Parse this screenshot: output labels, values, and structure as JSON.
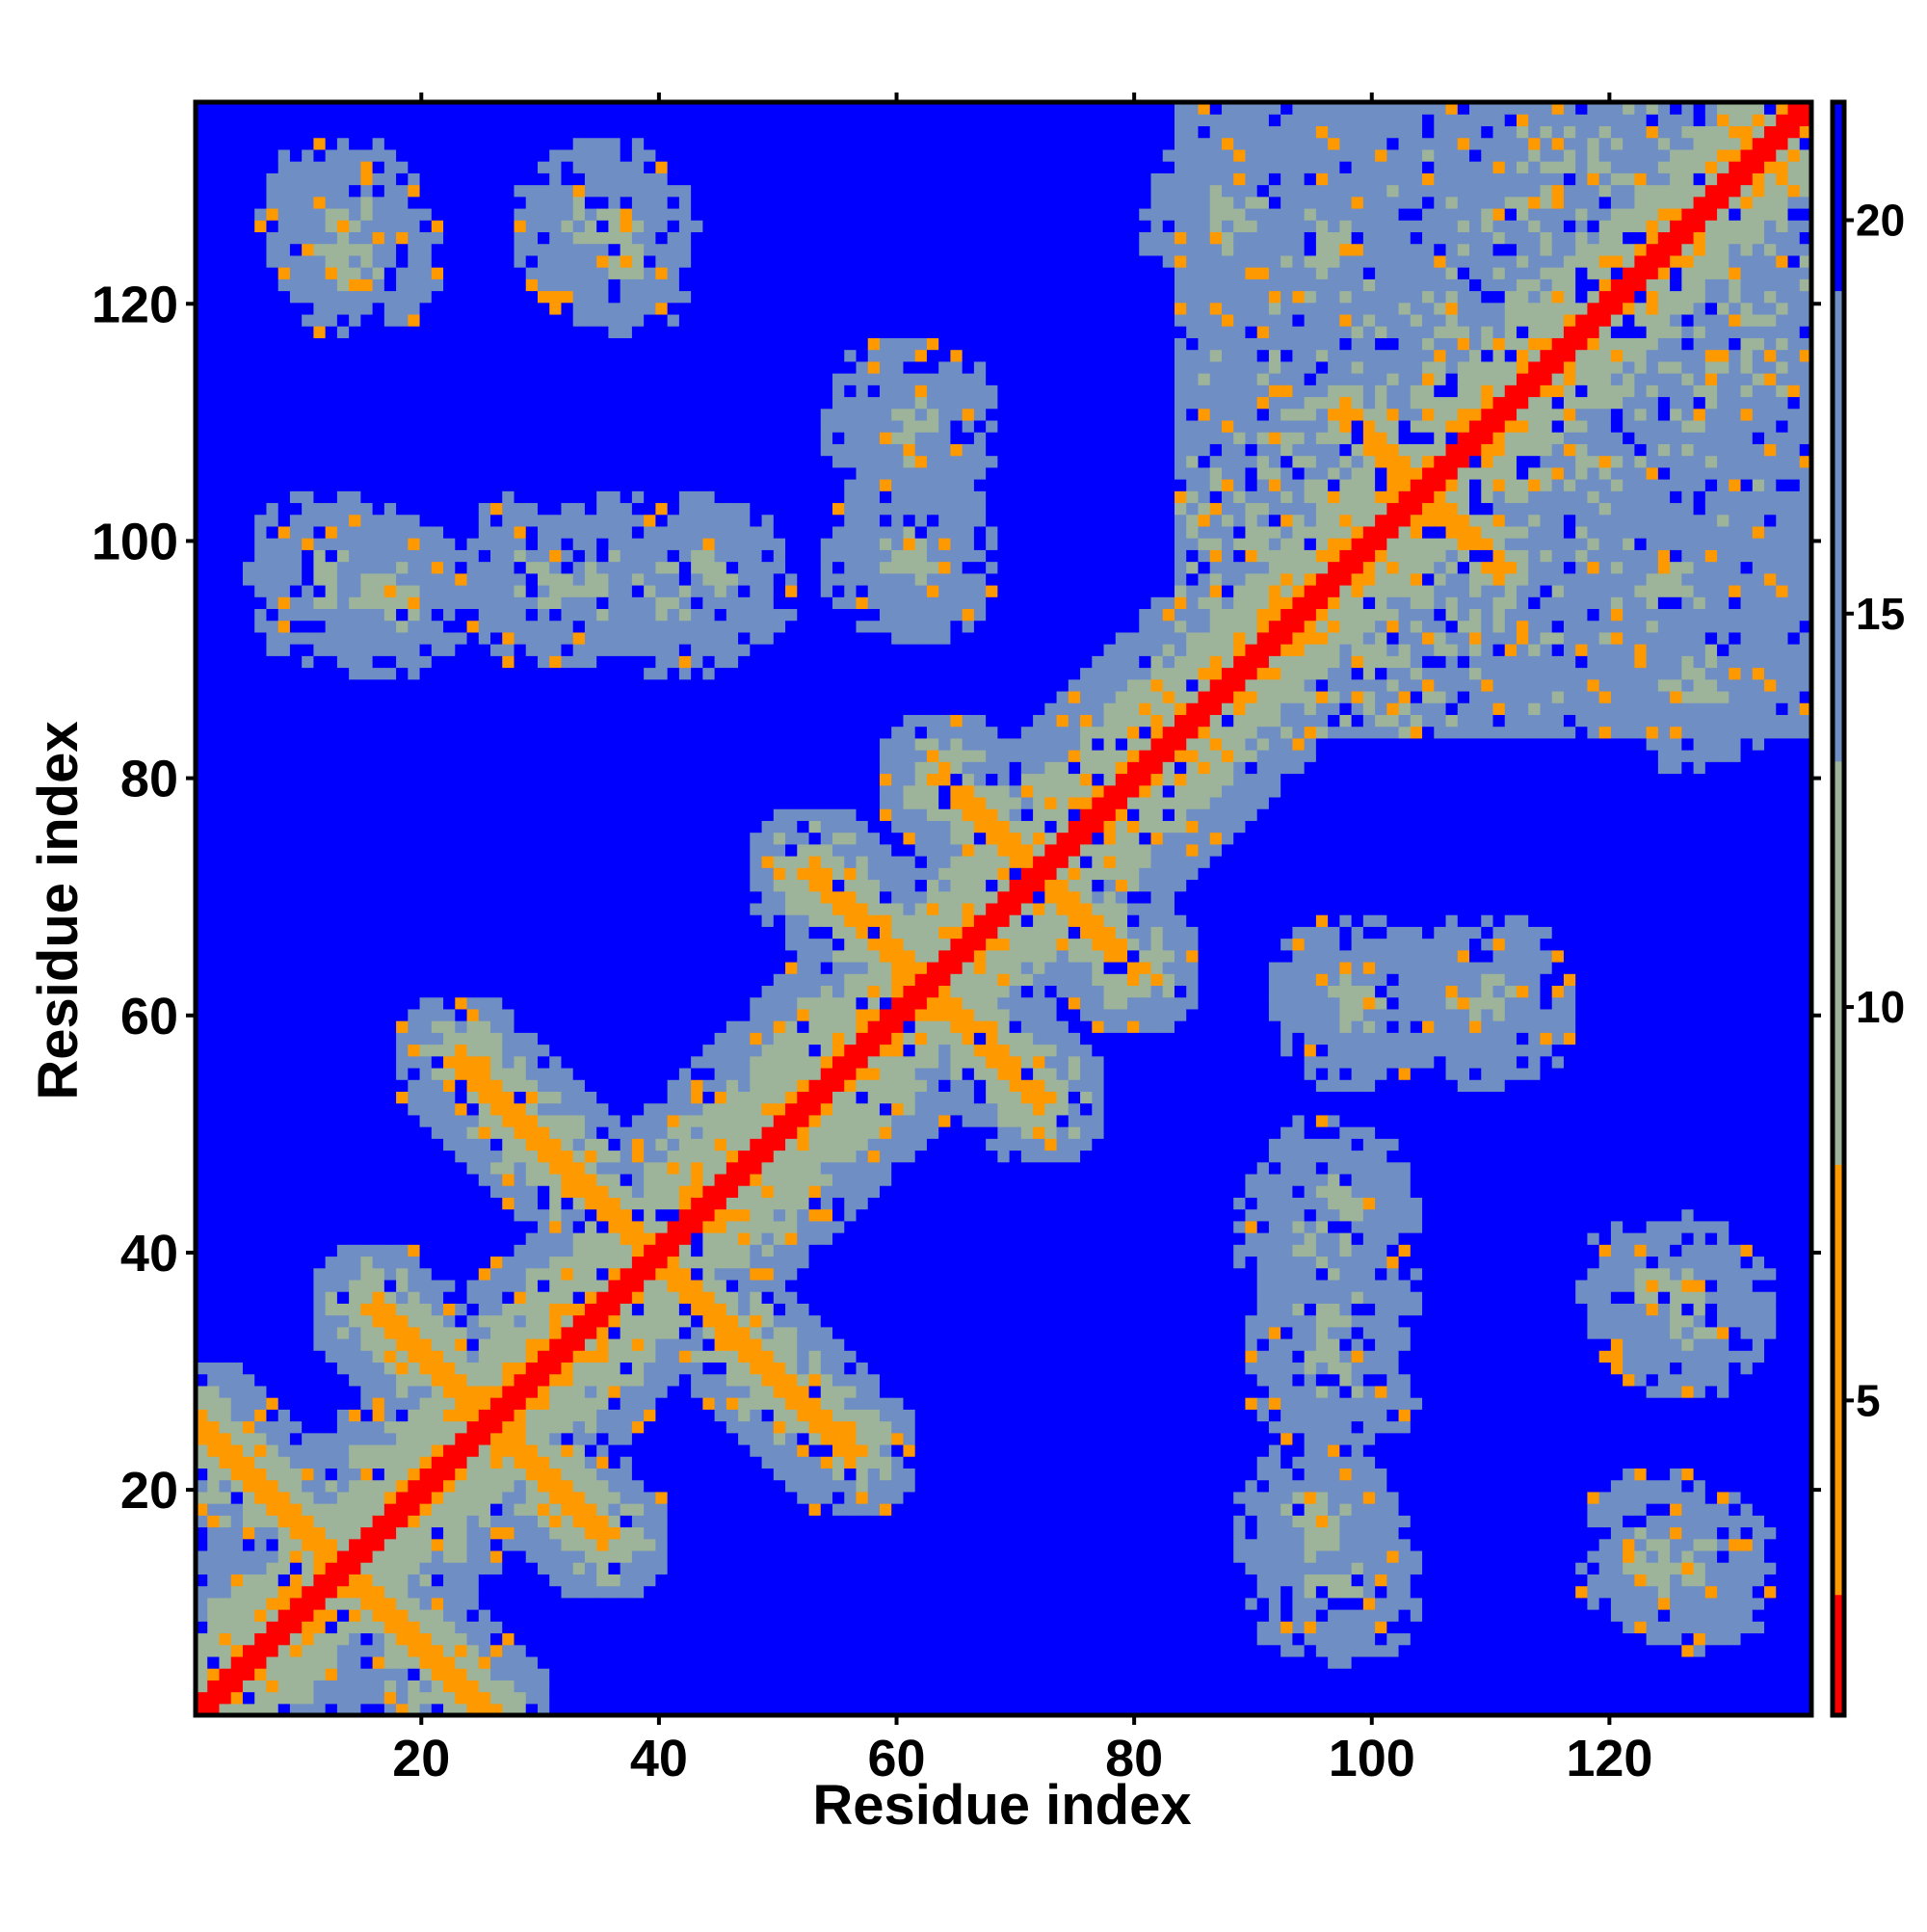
{
  "chart_data": {
    "type": "heatmap",
    "title": "",
    "xlabel": "Residue index",
    "ylabel": "Residue index",
    "xlim": [
      1,
      137
    ],
    "ylim": [
      1,
      137
    ],
    "x_ticks": [
      20,
      40,
      60,
      80,
      100,
      120
    ],
    "y_ticks": [
      20,
      40,
      60,
      80,
      100,
      120
    ],
    "colorbar": {
      "range": [
        1,
        21.5
      ],
      "ticks": [
        5,
        10,
        15,
        20
      ],
      "colors": {
        "bin_0": "#ff0000",
        "bin_1": "#ff9900",
        "bin_2": "#9db49a",
        "bin_3": "#6f8ec4",
        "bin_4": "#0000ff"
      },
      "thresholds": [
        2.5,
        8,
        13,
        19
      ]
    },
    "description_of_values": "Pairwise residue distance map; symmetric about the diagonal",
    "diagonal_band_value": 1.5,
    "antiparallel_contacts": [
      {
        "center": [
          12,
          12
        ],
        "span": [
          [
            1,
            25
          ],
          [
            25,
            1
          ]
        ]
      },
      {
        "center": [
          26,
          26
        ],
        "span": [
          [
            16,
            35
          ],
          [
            35,
            16
          ]
        ]
      },
      {
        "center": [
          36,
          36
        ],
        "span": [
          [
            23,
            56
          ],
          [
            56,
            23
          ]
        ]
      },
      {
        "center": [
          62,
          62
        ],
        "span": [
          [
            53,
            72
          ],
          [
            72,
            53
          ]
        ]
      },
      {
        "center": [
          71,
          71
        ],
        "span": [
          [
            64,
            80
          ],
          [
            80,
            64
          ]
        ]
      },
      {
        "center": [
          104,
          104
        ],
        "span": [
          [
            98,
            111
          ],
          [
            111,
            98
          ]
        ]
      }
    ],
    "contact_clusters": [
      {
        "x": 12,
        "y": 97
      },
      {
        "x": 30,
        "y": 97
      },
      {
        "x": 44,
        "y": 97
      },
      {
        "x": 13,
        "y": 127
      },
      {
        "x": 35,
        "y": 127
      },
      {
        "x": 96,
        "y": 17
      },
      {
        "x": 97,
        "y": 35
      },
      {
        "x": 96,
        "y": 42
      },
      {
        "x": 125,
        "y": 14
      },
      {
        "x": 125,
        "y": 36
      },
      {
        "x": 99,
        "y": 61
      },
      {
        "x": 110,
        "y": 61
      },
      {
        "x": 125,
        "y": 96
      },
      {
        "x": 128,
        "y": 88
      }
    ]
  }
}
